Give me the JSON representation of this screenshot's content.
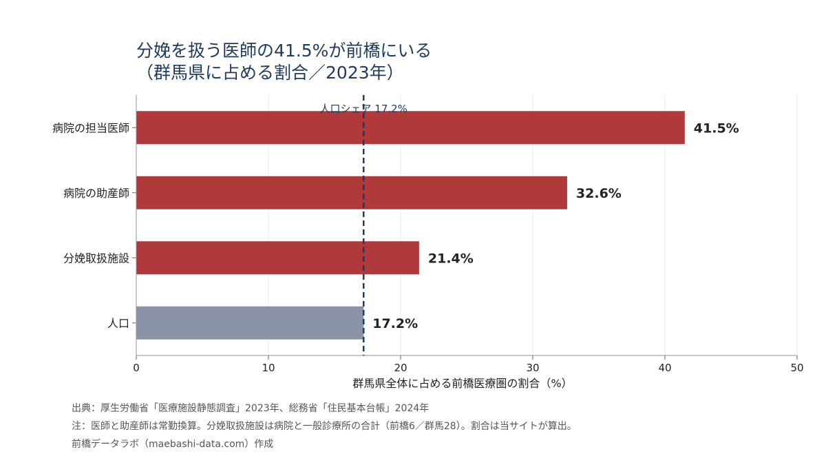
{
  "title_line1": "分娩を扱う医師の41.5%が前橋にいる",
  "title_line2": "（群馬県に占める割合／2023年）",
  "notes": {
    "source": "出典：厚生労働省「医療施設静態調査」2023年、総務省「住民基本台帳」2024年",
    "note": "注：医師と助産師は常勤換算。分娩取扱施設は病院と一般診療所の合計（前橋6／群馬28）。割合は当サイトが算出。",
    "credit": "前橋データラボ（maebashi-data.com）作成"
  },
  "colors": {
    "bar": "#b0393b",
    "population_bar": "#8a94a6",
    "reference_line": "#1e3a5f",
    "title": "#1e3a5f"
  },
  "chart_data": {
    "type": "bar",
    "orientation": "horizontal",
    "categories": [
      "病院の担当医師",
      "病院の助産師",
      "分娩取扱施設",
      "人口"
    ],
    "values": [
      41.5,
      32.6,
      21.4,
      17.2
    ],
    "value_labels": [
      "41.5%",
      "32.6%",
      "21.4%",
      "17.2%"
    ],
    "xlabel": "群馬県全体に占める前橋医療圏の割合（%）",
    "xlim": [
      0,
      50
    ],
    "xticks": [
      0,
      10,
      20,
      30,
      40,
      50
    ],
    "reference_line": {
      "value": 17.2,
      "label": "人口シェア 17.2%",
      "style": "dashed"
    },
    "grid": "vertical",
    "legend": "none"
  }
}
